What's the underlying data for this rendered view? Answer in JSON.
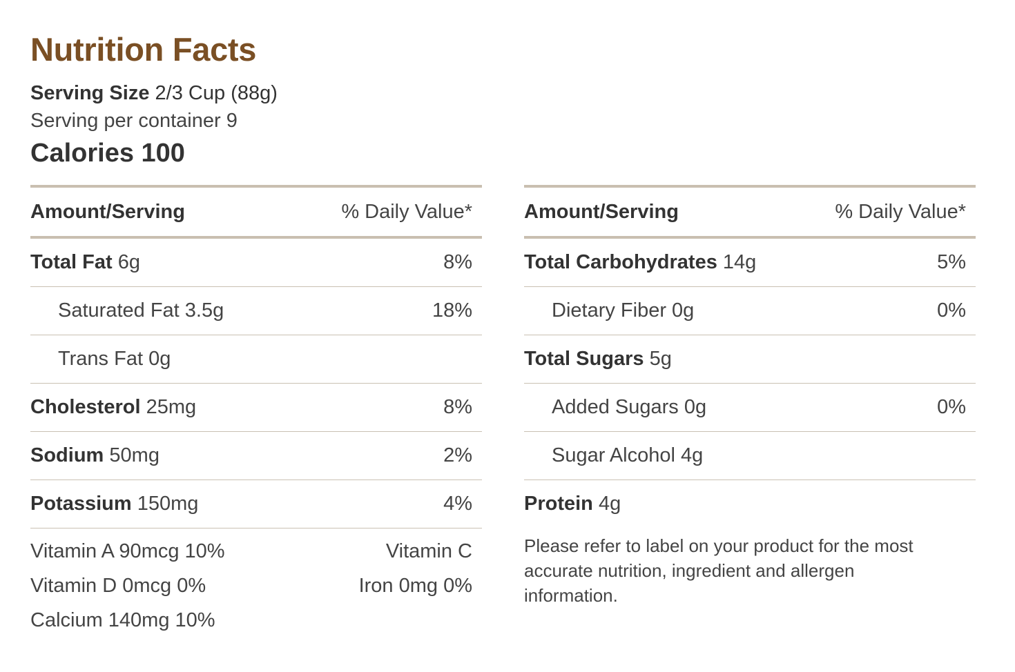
{
  "title": "Nutrition Facts",
  "serving": {
    "size_label": "Serving Size",
    "size_value": "2/3 Cup (88g)",
    "per_container": "Serving per container 9"
  },
  "calories": "Calories 100",
  "left_table": {
    "header_left": "Amount/Serving",
    "header_right": "% Daily Value*",
    "rows": [
      {
        "name": "Total Fat",
        "amount": "6g",
        "dv": "8%"
      },
      {
        "name": "Saturated Fat 3.5g",
        "amount": "",
        "dv": "18%"
      },
      {
        "name": "Trans Fat 0g",
        "amount": "",
        "dv": ""
      },
      {
        "name": "Cholesterol",
        "amount": "25mg",
        "dv": "8%"
      },
      {
        "name": "Sodium",
        "amount": "50mg",
        "dv": "2%"
      },
      {
        "name": "Potassium",
        "amount": "150mg",
        "dv": "4%"
      }
    ],
    "vitamins": [
      {
        "left": "Vitamin A 90mcg 10%",
        "right": "Vitamin C"
      },
      {
        "left": "Vitamin D 0mcg 0%",
        "right": "Iron 0mg 0%"
      },
      {
        "left": "Calcium 140mg 10%",
        "right": ""
      }
    ]
  },
  "right_table": {
    "header_left": "Amount/Serving",
    "header_right": "% Daily Value*",
    "rows": [
      {
        "name": "Total Carbohydrates",
        "amount": "14g",
        "dv": "5%"
      },
      {
        "name": "Dietary Fiber 0g",
        "amount": "",
        "dv": "0%"
      },
      {
        "name": "Total Sugars",
        "amount": "5g",
        "dv": ""
      },
      {
        "name": "Added Sugars 0g",
        "amount": "",
        "dv": "0%"
      },
      {
        "name": "Sugar Alcohol 4g",
        "amount": "",
        "dv": ""
      },
      {
        "name": "Protein",
        "amount": "4g",
        "dv": ""
      }
    ],
    "disclaimer": "Please refer to label on your product for the most accurate nutrition, ingredient and allergen information."
  }
}
